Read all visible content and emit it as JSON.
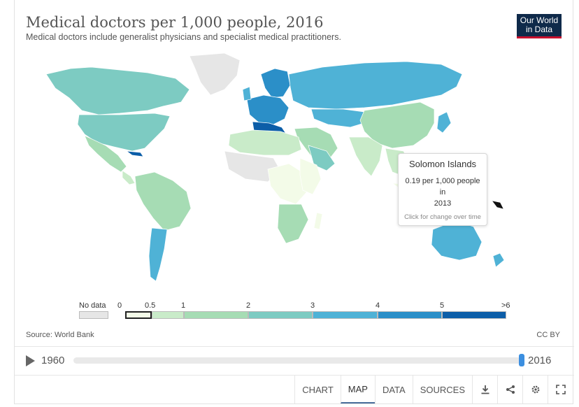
{
  "header": {
    "title": "Medical doctors per 1,000 people, 2016",
    "subtitle": "Medical doctors include generalist physicians and specialist medical practitioners.",
    "logo_line1": "Our World",
    "logo_line2": "in Data"
  },
  "tooltip": {
    "country": "Solomon Islands",
    "value_line": "0.19 per 1,000 people",
    "in_word": "in",
    "year": "2013",
    "hint": "Click for change over time"
  },
  "legend": {
    "no_data_label": "No data",
    "bins": [
      "0",
      "0.5",
      "1",
      "2",
      "3",
      "4",
      "5",
      ">6"
    ],
    "colors": {
      "no_data": "#e6e6e6",
      "b0": "#f3fbe8",
      "b1": "#c9ebc9",
      "b2": "#a6dcb4",
      "b3": "#7dcbc2",
      "b4": "#4fb2d6",
      "b5": "#2b8fc8",
      "b6": "#0c5ea8"
    }
  },
  "footer": {
    "source": "Source: World Bank",
    "license": "CC BY"
  },
  "timeline": {
    "start_year": "1960",
    "end_year": "2016",
    "position": 1.0
  },
  "tabs": [
    {
      "label": "CHART",
      "active": false
    },
    {
      "label": "MAP",
      "active": true
    },
    {
      "label": "DATA",
      "active": false
    },
    {
      "label": "SOURCES",
      "active": false
    }
  ],
  "tool_icons": [
    "download-icon",
    "share-icon",
    "settings-icon",
    "fullscreen-icon"
  ]
}
